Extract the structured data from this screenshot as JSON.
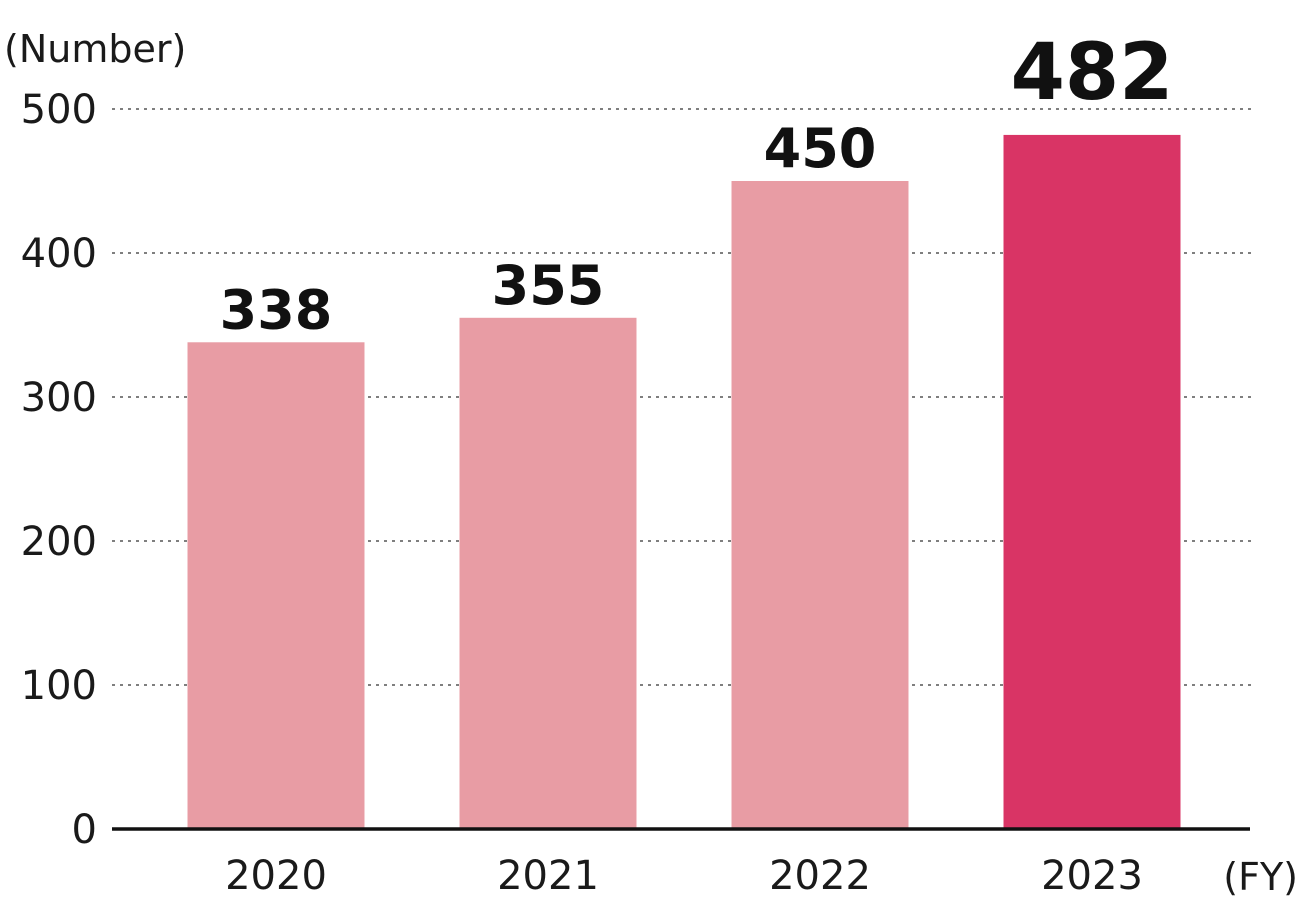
{
  "chart_data": {
    "type": "bar",
    "title": "",
    "ylabel": "(Number)",
    "xlabel": "(FY)",
    "categories": [
      "2020",
      "2021",
      "2022",
      "2023"
    ],
    "values": [
      338,
      355,
      450,
      482
    ],
    "data_labels": [
      "338",
      "355",
      "450",
      "482"
    ],
    "highlight_index": 3,
    "ylim": [
      0,
      500
    ],
    "yticks": [
      0,
      100,
      200,
      300,
      400,
      500
    ],
    "ytick_labels": [
      "0",
      "100",
      "200",
      "300",
      "400",
      "500"
    ],
    "grid": true,
    "colors": {
      "bar": "#e89ca4",
      "bar_highlight": "#d93465",
      "grid": "#555555",
      "axis": "#111111"
    }
  }
}
